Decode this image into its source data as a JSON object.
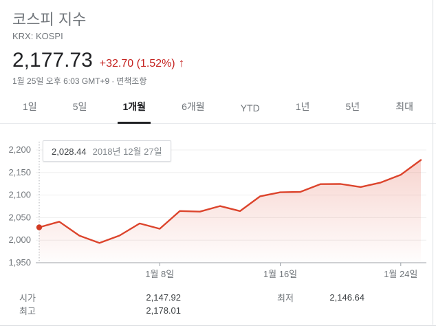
{
  "header": {
    "title": "코스피 지수",
    "exchange": "KRX: KOSPI",
    "price": "2,177.73",
    "change": "+32.70 (1.52%)",
    "arrow": "↑",
    "timestamp": "1월 25일 오후 6:03 GMT+9",
    "separator": "·",
    "disclaimer": "면책조항"
  },
  "tabs": {
    "items": [
      {
        "label": "1일",
        "selected": false
      },
      {
        "label": "5일",
        "selected": false
      },
      {
        "label": "1개월",
        "selected": true
      },
      {
        "label": "6개월",
        "selected": false
      },
      {
        "label": "YTD",
        "selected": false
      },
      {
        "label": "1년",
        "selected": false
      },
      {
        "label": "5년",
        "selected": false
      },
      {
        "label": "최대",
        "selected": false
      }
    ]
  },
  "tooltip": {
    "value": "2,028.44",
    "date": "2018년 12월 27일"
  },
  "chart_data": {
    "type": "area",
    "title": "KOSPI index, 1 month",
    "x": [
      "2018-12-27",
      "2018-12-28",
      "2019-01-02",
      "2019-01-03",
      "2019-01-04",
      "2019-01-07",
      "2019-01-08",
      "2019-01-09",
      "2019-01-10",
      "2019-01-11",
      "2019-01-14",
      "2019-01-15",
      "2019-01-16",
      "2019-01-17",
      "2019-01-18",
      "2019-01-21",
      "2019-01-22",
      "2019-01-23",
      "2019-01-24",
      "2019-01-25"
    ],
    "values": [
      2028.44,
      2041.04,
      2010.0,
      1993.7,
      2010.25,
      2037.1,
      2025.27,
      2064.71,
      2063.28,
      2075.57,
      2064.52,
      2097.18,
      2106.1,
      2107.06,
      2124.28,
      2124.61,
      2117.77,
      2127.78,
      2145.03,
      2177.73
    ],
    "ylim": [
      1950,
      2200
    ],
    "grid": true,
    "y_ticks": [
      {
        "v": 1950,
        "label": "1,950"
      },
      {
        "v": 2000,
        "label": "2,000"
      },
      {
        "v": 2050,
        "label": "2,050"
      },
      {
        "v": 2100,
        "label": "2,100"
      },
      {
        "v": 2150,
        "label": "2,150"
      },
      {
        "v": 2200,
        "label": "2,200"
      }
    ],
    "x_ticks": [
      {
        "index": 6,
        "label": "1월 8일"
      },
      {
        "index": 12,
        "label": "1월 16일"
      },
      {
        "index": 18,
        "label": "1월 24일"
      }
    ],
    "highlight_index": 0,
    "colors": {
      "line": "#dc442c",
      "dot": "#d23a22",
      "fill": "#dc442c",
      "gridline": "#efefef",
      "axis": "#bdc1c6",
      "tick": "#9aa0a6",
      "label": "#71767b",
      "cursor": "#a9adb2"
    }
  },
  "stats": {
    "cells": [
      {
        "label": "시가",
        "value": "2,147.92"
      },
      {
        "label": "최저",
        "value": "2,146.64"
      },
      {
        "label": "최고",
        "value": "2,178.01"
      },
      {
        "label": "",
        "value": ""
      }
    ]
  }
}
